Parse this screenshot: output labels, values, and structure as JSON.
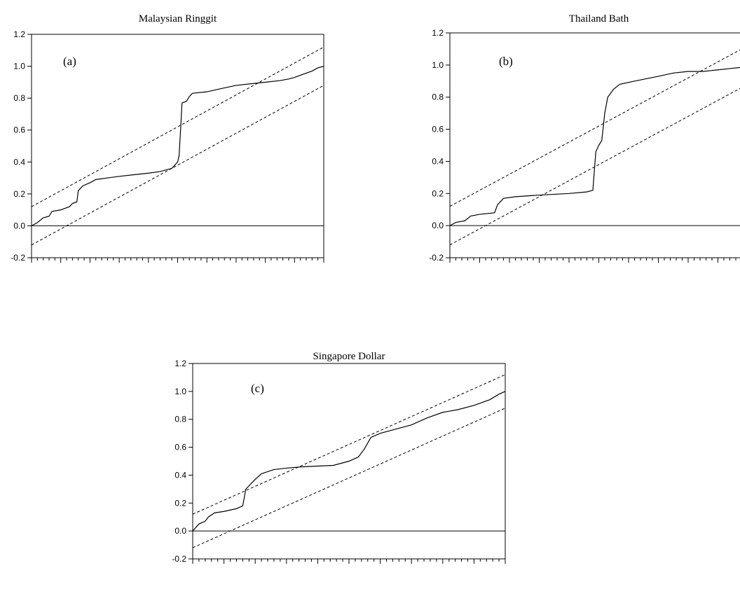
{
  "chart_data": [
    {
      "type": "line",
      "title": "Malaysian Ringgit",
      "panel_label": "(a)",
      "ylim": [
        -0.2,
        1.2
      ],
      "yticks": [
        -0.2,
        0.0,
        0.2,
        0.4,
        0.6,
        0.8,
        1.0,
        1.2
      ],
      "ytick_labels": [
        "-0.2",
        "0.0",
        "0.2",
        "0.4",
        "0.6",
        "0.8",
        "1.0",
        "1.2"
      ],
      "xlim": [
        0,
        1
      ],
      "x_minor_ticks": 50,
      "x_major_every": 5,
      "zero_line": 0,
      "bands": [
        {
          "style": "dashed",
          "points": [
            [
              0,
              0.12
            ],
            [
              1,
              1.12
            ]
          ]
        },
        {
          "style": "dashed",
          "points": [
            [
              0,
              -0.12
            ],
            [
              1,
              0.88
            ]
          ]
        }
      ],
      "series": [
        {
          "style": "solid",
          "points": [
            [
              0.0,
              0.0
            ],
            [
              0.02,
              0.02
            ],
            [
              0.04,
              0.05
            ],
            [
              0.06,
              0.06
            ],
            [
              0.07,
              0.09
            ],
            [
              0.1,
              0.1
            ],
            [
              0.13,
              0.12
            ],
            [
              0.14,
              0.14
            ],
            [
              0.155,
              0.15
            ],
            [
              0.16,
              0.22
            ],
            [
              0.175,
              0.25
            ],
            [
              0.2,
              0.27
            ],
            [
              0.22,
              0.29
            ],
            [
              0.26,
              0.3
            ],
            [
              0.3,
              0.31
            ],
            [
              0.35,
              0.32
            ],
            [
              0.4,
              0.33
            ],
            [
              0.44,
              0.34
            ],
            [
              0.48,
              0.36
            ],
            [
              0.5,
              0.4
            ],
            [
              0.505,
              0.44
            ],
            [
              0.51,
              0.6
            ],
            [
              0.515,
              0.77
            ],
            [
              0.53,
              0.78
            ],
            [
              0.54,
              0.81
            ],
            [
              0.55,
              0.83
            ],
            [
              0.6,
              0.84
            ],
            [
              0.65,
              0.86
            ],
            [
              0.7,
              0.88
            ],
            [
              0.75,
              0.89
            ],
            [
              0.8,
              0.9
            ],
            [
              0.85,
              0.91
            ],
            [
              0.88,
              0.92
            ],
            [
              0.9,
              0.93
            ],
            [
              0.93,
              0.95
            ],
            [
              0.96,
              0.97
            ],
            [
              0.98,
              0.99
            ],
            [
              1.0,
              1.0
            ]
          ]
        }
      ]
    },
    {
      "type": "line",
      "title": "Thailand Bath",
      "panel_label": "(b)",
      "ylim": [
        -0.2,
        1.2
      ],
      "yticks": [
        -0.2,
        0.0,
        0.2,
        0.4,
        0.6,
        0.8,
        1.0,
        1.2
      ],
      "ytick_labels": [
        "-0.2",
        "0.0",
        "0.2",
        "0.4",
        "0.6",
        "0.8",
        "1.0",
        "1.2"
      ],
      "xlim": [
        0,
        1
      ],
      "x_minor_ticks": 50,
      "x_major_every": 5,
      "zero_line": 0,
      "bands": [
        {
          "style": "dashed",
          "points": [
            [
              0,
              0.12
            ],
            [
              1,
              1.12
            ]
          ]
        },
        {
          "style": "dashed",
          "points": [
            [
              0,
              -0.12
            ],
            [
              1,
              0.88
            ]
          ]
        }
      ],
      "series": [
        {
          "style": "solid",
          "points": [
            [
              0.0,
              0.0
            ],
            [
              0.02,
              0.02
            ],
            [
              0.05,
              0.03
            ],
            [
              0.07,
              0.06
            ],
            [
              0.1,
              0.07
            ],
            [
              0.15,
              0.08
            ],
            [
              0.16,
              0.13
            ],
            [
              0.18,
              0.17
            ],
            [
              0.22,
              0.18
            ],
            [
              0.3,
              0.19
            ],
            [
              0.4,
              0.2
            ],
            [
              0.46,
              0.21
            ],
            [
              0.48,
              0.22
            ],
            [
              0.49,
              0.46
            ],
            [
              0.5,
              0.5
            ],
            [
              0.51,
              0.53
            ],
            [
              0.52,
              0.7
            ],
            [
              0.53,
              0.8
            ],
            [
              0.55,
              0.85
            ],
            [
              0.57,
              0.88
            ],
            [
              0.62,
              0.9
            ],
            [
              0.7,
              0.93
            ],
            [
              0.75,
              0.95
            ],
            [
              0.8,
              0.96
            ],
            [
              0.85,
              0.96
            ],
            [
              0.9,
              0.97
            ],
            [
              0.95,
              0.98
            ],
            [
              1.0,
              0.99
            ]
          ]
        }
      ]
    },
    {
      "type": "line",
      "title": "Singapore Dollar",
      "panel_label": "(c)",
      "ylim": [
        -0.2,
        1.2
      ],
      "yticks": [
        -0.2,
        0.0,
        0.2,
        0.4,
        0.6,
        0.8,
        1.0,
        1.2
      ],
      "ytick_labels": [
        "-0.2",
        "0.0",
        "0.2",
        "0.4",
        "0.6",
        "0.8",
        "1.0",
        "1.2"
      ],
      "xlim": [
        0,
        1
      ],
      "x_minor_ticks": 50,
      "x_major_every": 5,
      "zero_line": 0,
      "bands": [
        {
          "style": "dashed",
          "points": [
            [
              0,
              0.12
            ],
            [
              1,
              1.12
            ]
          ]
        },
        {
          "style": "dashed",
          "points": [
            [
              0,
              -0.12
            ],
            [
              1,
              0.88
            ]
          ]
        }
      ],
      "series": [
        {
          "style": "solid",
          "points": [
            [
              0.0,
              0.0
            ],
            [
              0.02,
              0.05
            ],
            [
              0.04,
              0.07
            ],
            [
              0.05,
              0.1
            ],
            [
              0.07,
              0.13
            ],
            [
              0.1,
              0.14
            ],
            [
              0.14,
              0.16
            ],
            [
              0.16,
              0.18
            ],
            [
              0.17,
              0.3
            ],
            [
              0.2,
              0.37
            ],
            [
              0.22,
              0.41
            ],
            [
              0.26,
              0.44
            ],
            [
              0.3,
              0.45
            ],
            [
              0.35,
              0.46
            ],
            [
              0.45,
              0.47
            ],
            [
              0.5,
              0.5
            ],
            [
              0.53,
              0.53
            ],
            [
              0.55,
              0.59
            ],
            [
              0.57,
              0.67
            ],
            [
              0.6,
              0.7
            ],
            [
              0.65,
              0.73
            ],
            [
              0.7,
              0.76
            ],
            [
              0.75,
              0.81
            ],
            [
              0.8,
              0.85
            ],
            [
              0.85,
              0.87
            ],
            [
              0.9,
              0.9
            ],
            [
              0.95,
              0.94
            ],
            [
              0.98,
              0.98
            ],
            [
              1.0,
              1.0
            ]
          ]
        }
      ]
    }
  ]
}
